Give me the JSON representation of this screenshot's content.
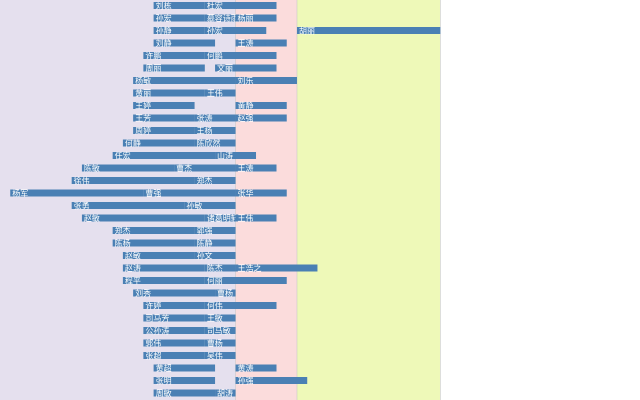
{
  "chart_data": {
    "type": "bar",
    "orientation": "horizontal",
    "note_layout": "stacked segments per row, negative values extend left of zero",
    "colors": {
      "bar": "#4a80b4",
      "band_negative": "#e5e0ee",
      "band_low": "#fbdcdc",
      "band_high": "#eef9b8",
      "label": "#ffffff",
      "divider": "#c8c8c8"
    },
    "xlim": [
      -23,
      31
    ],
    "bands": [
      {
        "from": -23,
        "to": 0,
        "color_key": "band_negative"
      },
      {
        "from": 0,
        "to": 6,
        "color_key": "band_low"
      },
      {
        "from": 6,
        "to": 20,
        "color_key": "band_high"
      }
    ],
    "rows": [
      {
        "segments": [
          {
            "name": "刘栋",
            "start": -8,
            "end": -3
          },
          {
            "name": "杜宏",
            "start": -3,
            "end": 4
          }
        ]
      },
      {
        "segments": [
          {
            "name": "孙宏",
            "start": -8,
            "end": -3
          },
          {
            "name": "慕容诗雨",
            "start": -3,
            "end": 0
          },
          {
            "name": "杨丽",
            "start": 0,
            "end": 4
          }
        ]
      },
      {
        "segments": [
          {
            "name": "孙静",
            "start": -8,
            "end": -3
          },
          {
            "name": "孙宏",
            "start": -3,
            "end": 3
          },
          {
            "name": "胡丽",
            "start": 6,
            "end": 20
          }
        ]
      },
      {
        "segments": [
          {
            "name": "刘静",
            "start": -8,
            "end": -2
          },
          {
            "name": "王涛",
            "start": 0,
            "end": 5
          }
        ]
      },
      {
        "segments": [
          {
            "name": "许鹏",
            "start": -9,
            "end": -3
          },
          {
            "name": "何鹏",
            "start": -3,
            "end": 4
          }
        ]
      },
      {
        "segments": [
          {
            "name": "周丽",
            "start": -9,
            "end": -3
          },
          {
            "name": "文丽",
            "start": -2,
            "end": 4
          }
        ]
      },
      {
        "segments": [
          {
            "name": "杨敏",
            "start": -10,
            "end": 0
          },
          {
            "name": "刘乐",
            "start": 0,
            "end": 6
          }
        ]
      },
      {
        "segments": [
          {
            "name": "黄丽",
            "start": -10,
            "end": -3
          },
          {
            "name": "王伟",
            "start": -3,
            "end": 0
          }
        ]
      },
      {
        "segments": [
          {
            "name": "王婷",
            "start": -10,
            "end": -4
          },
          {
            "name": "黄静",
            "start": 0,
            "end": 5
          }
        ]
      },
      {
        "segments": [
          {
            "name": "王芳",
            "start": -10,
            "end": -4
          },
          {
            "name": "张涛",
            "start": -4,
            "end": 0
          },
          {
            "name": "赵强",
            "start": 0,
            "end": 5
          }
        ]
      },
      {
        "segments": [
          {
            "name": "周婷",
            "start": -10,
            "end": -4
          },
          {
            "name": "王杨",
            "start": -4,
            "end": 0
          }
        ]
      },
      {
        "segments": [
          {
            "name": "何静",
            "start": -11,
            "end": -4
          },
          {
            "name": "陈欣然",
            "start": -4,
            "end": 0
          }
        ]
      },
      {
        "segments": [
          {
            "name": "任宏",
            "start": -12,
            "end": -2
          },
          {
            "name": "山涛",
            "start": -2,
            "end": 2
          }
        ]
      },
      {
        "segments": [
          {
            "name": "陈敏",
            "start": -15,
            "end": -6
          },
          {
            "name": "曹杰",
            "start": -6,
            "end": 0
          },
          {
            "name": "王涛",
            "start": 0,
            "end": 4
          }
        ]
      },
      {
        "segments": [
          {
            "name": "徐伟",
            "start": -16,
            "end": -4
          },
          {
            "name": "郑杰",
            "start": -4,
            "end": 0
          }
        ]
      },
      {
        "segments": [
          {
            "name": "杨军",
            "start": -22,
            "end": -9
          },
          {
            "name": "曹强",
            "start": -9,
            "end": 0
          },
          {
            "name": "张华",
            "start": 0,
            "end": 5
          }
        ]
      },
      {
        "segments": [
          {
            "name": "张勇",
            "start": -16,
            "end": -5
          },
          {
            "name": "孙敏",
            "start": -5,
            "end": 0
          }
        ]
      },
      {
        "segments": [
          {
            "name": "赵敏",
            "start": -15,
            "end": -3
          },
          {
            "name": "诸葛明轩",
            "start": -3,
            "end": 0
          },
          {
            "name": "王伟",
            "start": 0,
            "end": 4
          }
        ]
      },
      {
        "segments": [
          {
            "name": "郑杰",
            "start": -12,
            "end": -4
          },
          {
            "name": "郭强",
            "start": -4,
            "end": 0
          }
        ]
      },
      {
        "segments": [
          {
            "name": "陈杨",
            "start": -12,
            "end": -4
          },
          {
            "name": "陈静",
            "start": -4,
            "end": 0
          }
        ]
      },
      {
        "segments": [
          {
            "name": "赵敏",
            "start": -11,
            "end": -4
          },
          {
            "name": "孙文",
            "start": -4,
            "end": 0
          }
        ]
      },
      {
        "segments": [
          {
            "name": "赵涛",
            "start": -11,
            "end": -3
          },
          {
            "name": "陈杰",
            "start": -3,
            "end": 0
          },
          {
            "name": "王浩之",
            "start": 0,
            "end": 8
          }
        ]
      },
      {
        "segments": [
          {
            "name": "程平",
            "start": -11,
            "end": -3
          },
          {
            "name": "何丽",
            "start": -3,
            "end": 5
          }
        ]
      },
      {
        "segments": [
          {
            "name": "刘秀",
            "start": -10,
            "end": -2
          },
          {
            "name": "曹杨",
            "start": -2,
            "end": 0
          }
        ]
      },
      {
        "segments": [
          {
            "name": "许婷",
            "start": -9,
            "end": -3
          },
          {
            "name": "何伟",
            "start": -3,
            "end": 4
          }
        ]
      },
      {
        "segments": [
          {
            "name": "司马芳",
            "start": -9,
            "end": -3
          },
          {
            "name": "王敏",
            "start": -3,
            "end": 0
          }
        ]
      },
      {
        "segments": [
          {
            "name": "公孙涛",
            "start": -9,
            "end": -3
          },
          {
            "name": "司马敏",
            "start": -3,
            "end": 0
          }
        ]
      },
      {
        "segments": [
          {
            "name": "郭伟",
            "start": -9,
            "end": -3
          },
          {
            "name": "曹杨",
            "start": -3,
            "end": 0
          }
        ]
      },
      {
        "segments": [
          {
            "name": "张超",
            "start": -9,
            "end": -3
          },
          {
            "name": "吴伟",
            "start": -3,
            "end": 0
          }
        ]
      },
      {
        "segments": [
          {
            "name": "黄超",
            "start": -8,
            "end": -2
          },
          {
            "name": "黄涛",
            "start": 0,
            "end": 4
          }
        ]
      },
      {
        "segments": [
          {
            "name": "张明",
            "start": -8,
            "end": -2
          },
          {
            "name": "孙强",
            "start": 0,
            "end": 7
          }
        ]
      },
      {
        "segments": [
          {
            "name": "周敏",
            "start": -8,
            "end": -2
          },
          {
            "name": "胡涛",
            "start": -2,
            "end": 0
          }
        ]
      },
      {
        "segments": [
          {
            "name": "李强",
            "start": -8,
            "end": -2
          },
          {
            "name": "曹杨",
            "start": -2,
            "end": 0
          }
        ]
      }
    ]
  }
}
